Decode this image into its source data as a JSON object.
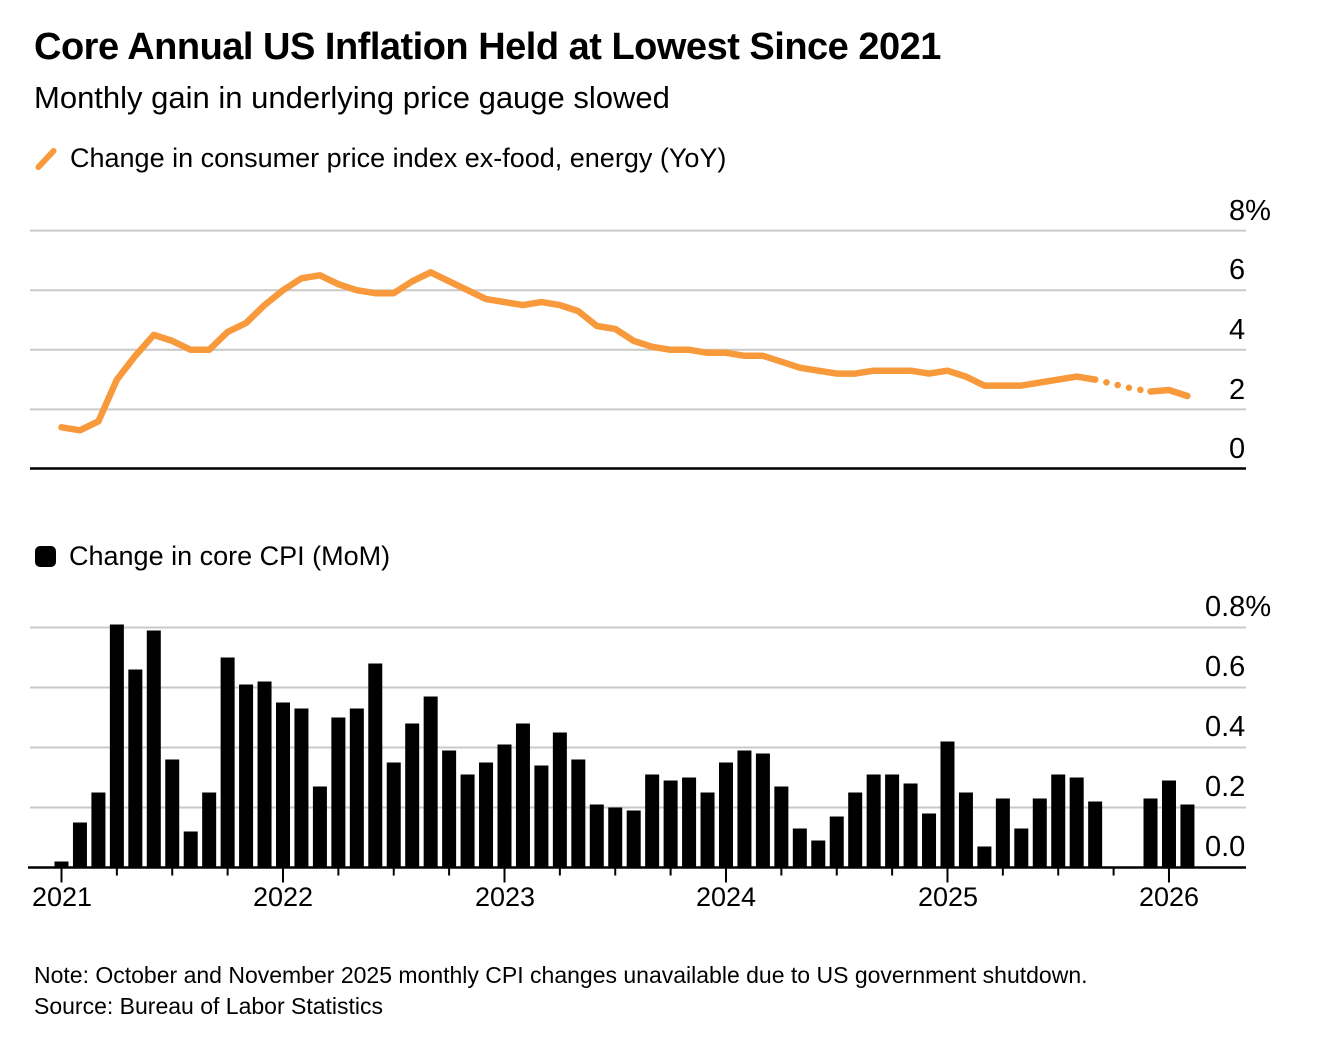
{
  "header": {
    "title": "Core Annual US Inflation Held at Lowest Since 2021",
    "subtitle": "Monthly gain in underlying price gauge slowed"
  },
  "footer": {
    "note": "Note: October and November 2025 monthly CPI changes unavailable due to US government shutdown.",
    "source": "Source: Bureau of Labor Statistics"
  },
  "colors": {
    "line": "#F8993C",
    "bar": "#000000",
    "grid": "#C9C9C9",
    "axis": "#000000",
    "background": "#FFFFFF"
  },
  "chart_data": {
    "x_months": [
      "2021-01",
      "2021-02",
      "2021-03",
      "2021-04",
      "2021-05",
      "2021-06",
      "2021-07",
      "2021-08",
      "2021-09",
      "2021-10",
      "2021-11",
      "2021-12",
      "2022-01",
      "2022-02",
      "2022-03",
      "2022-04",
      "2022-05",
      "2022-06",
      "2022-07",
      "2022-08",
      "2022-09",
      "2022-10",
      "2022-11",
      "2022-12",
      "2023-01",
      "2023-02",
      "2023-03",
      "2023-04",
      "2023-05",
      "2023-06",
      "2023-07",
      "2023-08",
      "2023-09",
      "2023-10",
      "2023-11",
      "2023-12",
      "2024-01",
      "2024-02",
      "2024-03",
      "2024-04",
      "2024-05",
      "2024-06",
      "2024-07",
      "2024-08",
      "2024-09",
      "2024-10",
      "2024-11",
      "2024-12",
      "2025-01",
      "2025-02",
      "2025-03",
      "2025-04",
      "2025-05",
      "2025-06",
      "2025-07",
      "2025-08",
      "2025-09",
      "2025-10",
      "2025-11",
      "2025-12",
      "2026-01",
      "2026-02"
    ],
    "x_year_ticks": [
      "2021",
      "2022",
      "2023",
      "2024",
      "2025",
      "2026"
    ],
    "series": [
      {
        "type": "line",
        "name": "Change in consumer price index ex-food, energy (YoY)",
        "unit": "%",
        "color": "#F8993C",
        "axis": {
          "min": 0,
          "max": 8,
          "ticks": [
            "8%",
            "6",
            "4",
            "2",
            "0"
          ],
          "grid": "on",
          "labels_position": "right"
        },
        "dotted_months": [
          "2025-10",
          "2025-11"
        ],
        "values": [
          1.4,
          1.3,
          1.6,
          3.0,
          3.8,
          4.5,
          4.3,
          4.0,
          4.0,
          4.6,
          4.9,
          5.5,
          6.0,
          6.4,
          6.5,
          6.2,
          6.0,
          5.9,
          5.9,
          6.3,
          6.6,
          6.3,
          6.0,
          5.7,
          5.6,
          5.5,
          5.6,
          5.5,
          5.3,
          4.8,
          4.7,
          4.3,
          4.1,
          4.0,
          4.0,
          3.9,
          3.9,
          3.8,
          3.8,
          3.6,
          3.4,
          3.3,
          3.2,
          3.2,
          3.3,
          3.3,
          3.3,
          3.2,
          3.3,
          3.1,
          2.8,
          2.8,
          2.8,
          2.9,
          3.0,
          3.1,
          3.0,
          2.85,
          2.7,
          2.6,
          2.65,
          2.45
        ]
      },
      {
        "type": "bar",
        "name": "Change in core CPI (MoM)",
        "unit": "%",
        "color": "#000000",
        "axis": {
          "min": 0,
          "max": 0.8,
          "ticks": [
            "0.8%",
            "0.6",
            "0.4",
            "0.2",
            "0.0"
          ],
          "grid": "on",
          "labels_position": "right"
        },
        "missing_months": [
          "2025-10",
          "2025-11"
        ],
        "values": [
          0.02,
          0.15,
          0.25,
          0.81,
          0.66,
          0.79,
          0.36,
          0.12,
          0.25,
          0.7,
          0.61,
          0.62,
          0.55,
          0.53,
          0.27,
          0.5,
          0.53,
          0.68,
          0.35,
          0.48,
          0.57,
          0.39,
          0.31,
          0.35,
          0.41,
          0.48,
          0.34,
          0.45,
          0.36,
          0.21,
          0.2,
          0.19,
          0.31,
          0.29,
          0.3,
          0.25,
          0.35,
          0.39,
          0.38,
          0.27,
          0.13,
          0.09,
          0.17,
          0.25,
          0.31,
          0.31,
          0.28,
          0.18,
          0.42,
          0.25,
          0.07,
          0.23,
          0.13,
          0.23,
          0.31,
          0.3,
          0.22,
          null,
          null,
          0.23,
          0.29,
          0.21
        ]
      }
    ]
  }
}
